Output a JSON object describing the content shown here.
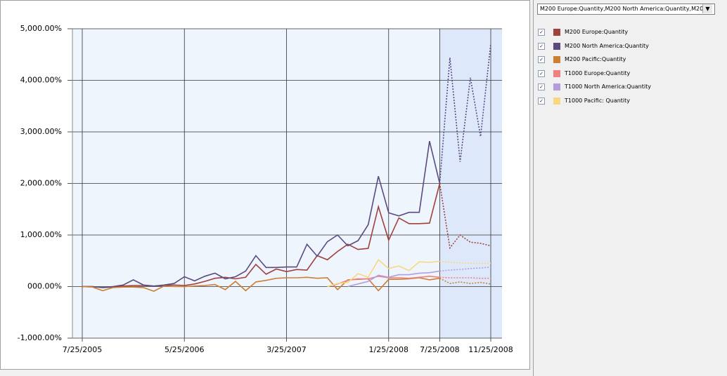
{
  "chart_data": {
    "type": "line",
    "selector": "M200 Europe:Quantity,M200 North America:Quantity,M200...",
    "categories": [
      "7/25/2005",
      null,
      null,
      null,
      null,
      null,
      null,
      null,
      null,
      null,
      "5/25/2006",
      null,
      null,
      null,
      null,
      null,
      null,
      null,
      null,
      null,
      "3/25/2007",
      null,
      null,
      null,
      null,
      null,
      null,
      null,
      null,
      null,
      "1/25/2008",
      null,
      null,
      null,
      null,
      "7/25/2008",
      null,
      null,
      null,
      null,
      "11/25/2008"
    ],
    "forecast_start": 35,
    "ylim": [
      -1000,
      5000
    ],
    "yticks": [
      {
        "value": -1000,
        "label": "-1,000.00%"
      },
      {
        "value": 0,
        "label": "000.00%"
      },
      {
        "value": 1000,
        "label": "1,000.00%"
      },
      {
        "value": 2000,
        "label": "2,000.00%"
      },
      {
        "value": 3000,
        "label": "3,000.00%"
      },
      {
        "value": 4000,
        "label": "4,000.00%"
      },
      {
        "value": 5000,
        "label": "5,000.00%"
      }
    ],
    "grid": true,
    "series": [
      {
        "name": "M200 Europe:Quantity",
        "color": "#a0413c",
        "values": [
          0,
          0,
          -20,
          -10,
          10,
          20,
          20,
          10,
          20,
          30,
          20,
          50,
          100,
          160,
          180,
          150,
          180,
          430,
          240,
          340,
          290,
          330,
          320,
          600,
          520,
          680,
          820,
          720,
          740,
          1550,
          900,
          1330,
          1220,
          1220,
          1230,
          2000,
          750,
          1000,
          860,
          840,
          790
        ]
      },
      {
        "name": "M200 North America:Quantity",
        "color": "#5b4a80",
        "values": [
          0,
          0,
          -20,
          0,
          30,
          130,
          30,
          10,
          30,
          60,
          190,
          110,
          200,
          260,
          150,
          190,
          300,
          600,
          370,
          370,
          380,
          380,
          820,
          590,
          870,
          1000,
          790,
          890,
          1200,
          2140,
          1430,
          1370,
          1440,
          1440,
          2820,
          2000,
          4440,
          2420,
          4050,
          2910,
          4710
        ]
      },
      {
        "name": "M200 Pacific:Quantity",
        "color": "#cd7f32",
        "values": [
          0,
          -10,
          -80,
          -20,
          -10,
          -10,
          -20,
          -90,
          10,
          0,
          0,
          10,
          20,
          40,
          -60,
          100,
          -80,
          90,
          120,
          160,
          170,
          170,
          180,
          160,
          170,
          -60,
          130,
          140,
          150,
          -80,
          140,
          140,
          150,
          170,
          130,
          160,
          60,
          90,
          60,
          80,
          50
        ]
      },
      {
        "name": "T1000 Europe:Quantity",
        "color": "#f08080",
        "values": [
          null,
          null,
          null,
          null,
          null,
          null,
          null,
          null,
          null,
          null,
          null,
          null,
          null,
          null,
          null,
          null,
          null,
          null,
          null,
          null,
          null,
          null,
          null,
          null,
          0,
          50,
          120,
          150,
          150,
          200,
          170,
          170,
          160,
          180,
          200,
          180,
          170,
          170,
          170,
          160,
          160
        ]
      },
      {
        "name": "T1000 North America:Quantity",
        "color": "#b39ddb",
        "values": [
          null,
          null,
          null,
          null,
          null,
          null,
          null,
          null,
          null,
          null,
          null,
          null,
          null,
          null,
          null,
          null,
          null,
          null,
          null,
          null,
          null,
          null,
          null,
          null,
          null,
          null,
          0,
          50,
          100,
          220,
          180,
          230,
          230,
          260,
          270,
          300,
          320,
          330,
          350,
          360,
          380
        ]
      },
      {
        "name": "T1000 Pacific: Quantity",
        "color": "#f9d77e",
        "values": [
          null,
          null,
          null,
          null,
          null,
          null,
          null,
          null,
          null,
          null,
          null,
          null,
          null,
          null,
          null,
          null,
          null,
          null,
          null,
          null,
          null,
          null,
          null,
          null,
          0,
          60,
          80,
          250,
          180,
          520,
          350,
          400,
          310,
          480,
          470,
          490,
          470,
          460,
          450,
          450,
          450
        ]
      }
    ]
  }
}
